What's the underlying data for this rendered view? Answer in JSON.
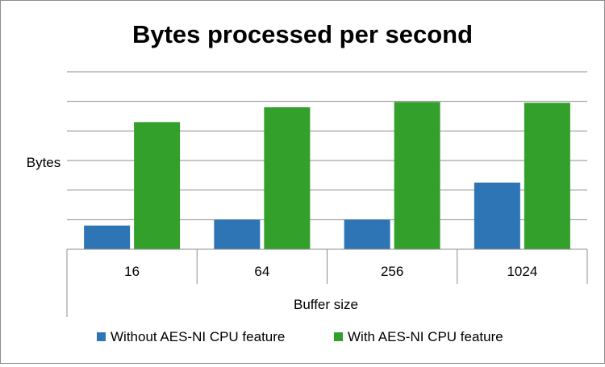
{
  "chart_data": {
    "type": "bar",
    "title": "Bytes processed per second",
    "xlabel": "Buffer size",
    "ylabel": "Bytes",
    "categories": [
      "16",
      "64",
      "256",
      "1024"
    ],
    "series": [
      {
        "name": "Without AES-NI CPU feature",
        "color": "#2e75b6",
        "values": [
          0.8,
          1.0,
          1.0,
          2.25
        ]
      },
      {
        "name": "With AES-NI CPU feature",
        "color": "#33a02c",
        "values": [
          4.3,
          4.8,
          4.98,
          4.95
        ]
      }
    ],
    "ylim": [
      0,
      6
    ],
    "grid": true,
    "legend_position": "bottom"
  }
}
